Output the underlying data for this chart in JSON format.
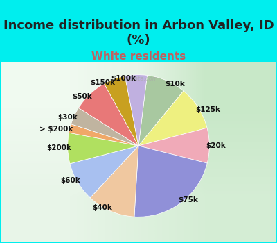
{
  "title": "Income distribution in Arbon Valley, ID\n(%)",
  "subtitle": "White residents",
  "bg_cyan": "#00EEEE",
  "bg_chart": "#d8edd8",
  "labels": [
    "$10k",
    "$125k",
    "$20k",
    "$75k",
    "$40k",
    "$60k",
    "$200k",
    "> $200k",
    "$30k",
    "$50k",
    "$150k",
    "$100k"
  ],
  "values": [
    9,
    10,
    8,
    22,
    11,
    9,
    7,
    2,
    4,
    8,
    5,
    5
  ],
  "colors": [
    "#a8c8a0",
    "#eef080",
    "#f0aab8",
    "#9090d8",
    "#f0c8a0",
    "#a8c0f0",
    "#b0e060",
    "#f0a868",
    "#c0b4a0",
    "#e87878",
    "#c8a020",
    "#c0b0e0"
  ],
  "title_fontsize": 13,
  "subtitle_fontsize": 11,
  "subtitle_color": "#c06060",
  "label_fontsize": 7.5,
  "startangle": 83
}
